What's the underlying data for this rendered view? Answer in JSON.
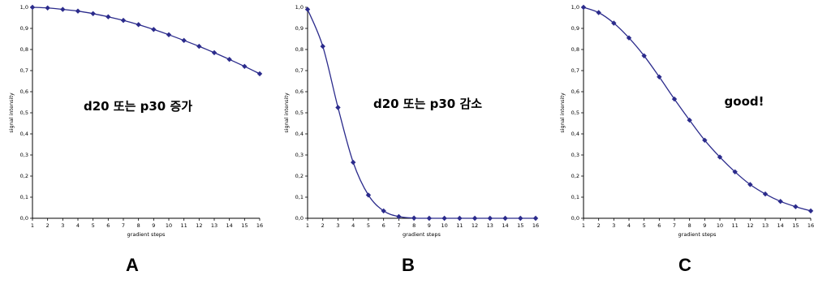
{
  "chart_data": [
    {
      "type": "line",
      "panel_label": "A",
      "annotation": "d20 또는 p30 증가",
      "xlabel": "gradient steps",
      "ylabel": "signal intensity",
      "x": [
        1,
        2,
        3,
        4,
        5,
        6,
        7,
        8,
        9,
        10,
        11,
        12,
        13,
        14,
        15,
        16
      ],
      "values": [
        1.0,
        0.997,
        0.99,
        0.982,
        0.97,
        0.955,
        0.938,
        0.918,
        0.895,
        0.87,
        0.843,
        0.815,
        0.785,
        0.753,
        0.72,
        0.685
      ],
      "xlim": [
        1,
        16
      ],
      "ylim": [
        0,
        1
      ],
      "yticks": [
        "0,0",
        "0,1",
        "0,2",
        "0,3",
        "0,4",
        "0,5",
        "0,6",
        "0,7",
        "0,8",
        "0,9",
        "1,0"
      ],
      "xticks": [
        "1",
        "2",
        "3",
        "4",
        "5",
        "6",
        "7",
        "8",
        "9",
        "10",
        "11",
        "12",
        "13",
        "14",
        "15",
        "16"
      ],
      "line_color": "#2b2b8c",
      "grid": false
    },
    {
      "type": "line",
      "panel_label": "B",
      "annotation": "d20 또는 p30 감소",
      "xlabel": "gradient steps",
      "ylabel": "signal intensity",
      "x": [
        1,
        2,
        3,
        4,
        5,
        6,
        7,
        8,
        9,
        10,
        11,
        12,
        13,
        14,
        15,
        16
      ],
      "values": [
        0.99,
        0.815,
        0.525,
        0.265,
        0.11,
        0.035,
        0.008,
        0.001,
        0,
        0,
        0,
        0,
        0,
        0,
        0,
        0
      ],
      "xlim": [
        1,
        16
      ],
      "ylim": [
        0,
        1
      ],
      "yticks": [
        "0,0",
        "0,1",
        "0,2",
        "0,3",
        "0,4",
        "0,5",
        "0,6",
        "0,7",
        "0,8",
        "0,9",
        "1,0"
      ],
      "xticks": [
        "1",
        "2",
        "3",
        "4",
        "5",
        "6",
        "7",
        "8",
        "9",
        "10",
        "11",
        "12",
        "13",
        "14",
        "15",
        "16"
      ],
      "line_color": "#2b2b8c",
      "grid": false
    },
    {
      "type": "line",
      "panel_label": "C",
      "annotation": "good!",
      "xlabel": "gradient steps",
      "ylabel": "signal intensity",
      "x": [
        1,
        2,
        3,
        4,
        5,
        6,
        7,
        8,
        9,
        10,
        11,
        12,
        13,
        14,
        15,
        16
      ],
      "values": [
        1.0,
        0.975,
        0.925,
        0.855,
        0.77,
        0.67,
        0.565,
        0.465,
        0.37,
        0.29,
        0.22,
        0.16,
        0.115,
        0.08,
        0.055,
        0.035
      ],
      "xlim": [
        1,
        16
      ],
      "ylim": [
        0,
        1
      ],
      "yticks": [
        "0,0",
        "0,1",
        "0,2",
        "0,3",
        "0,4",
        "0,5",
        "0,6",
        "0,7",
        "0,8",
        "0,9",
        "1,0"
      ],
      "xticks": [
        "1",
        "2",
        "3",
        "4",
        "5",
        "6",
        "7",
        "8",
        "9",
        "10",
        "11",
        "12",
        "13",
        "14",
        "15",
        "16"
      ],
      "line_color": "#2b2b8c",
      "grid": false
    }
  ]
}
